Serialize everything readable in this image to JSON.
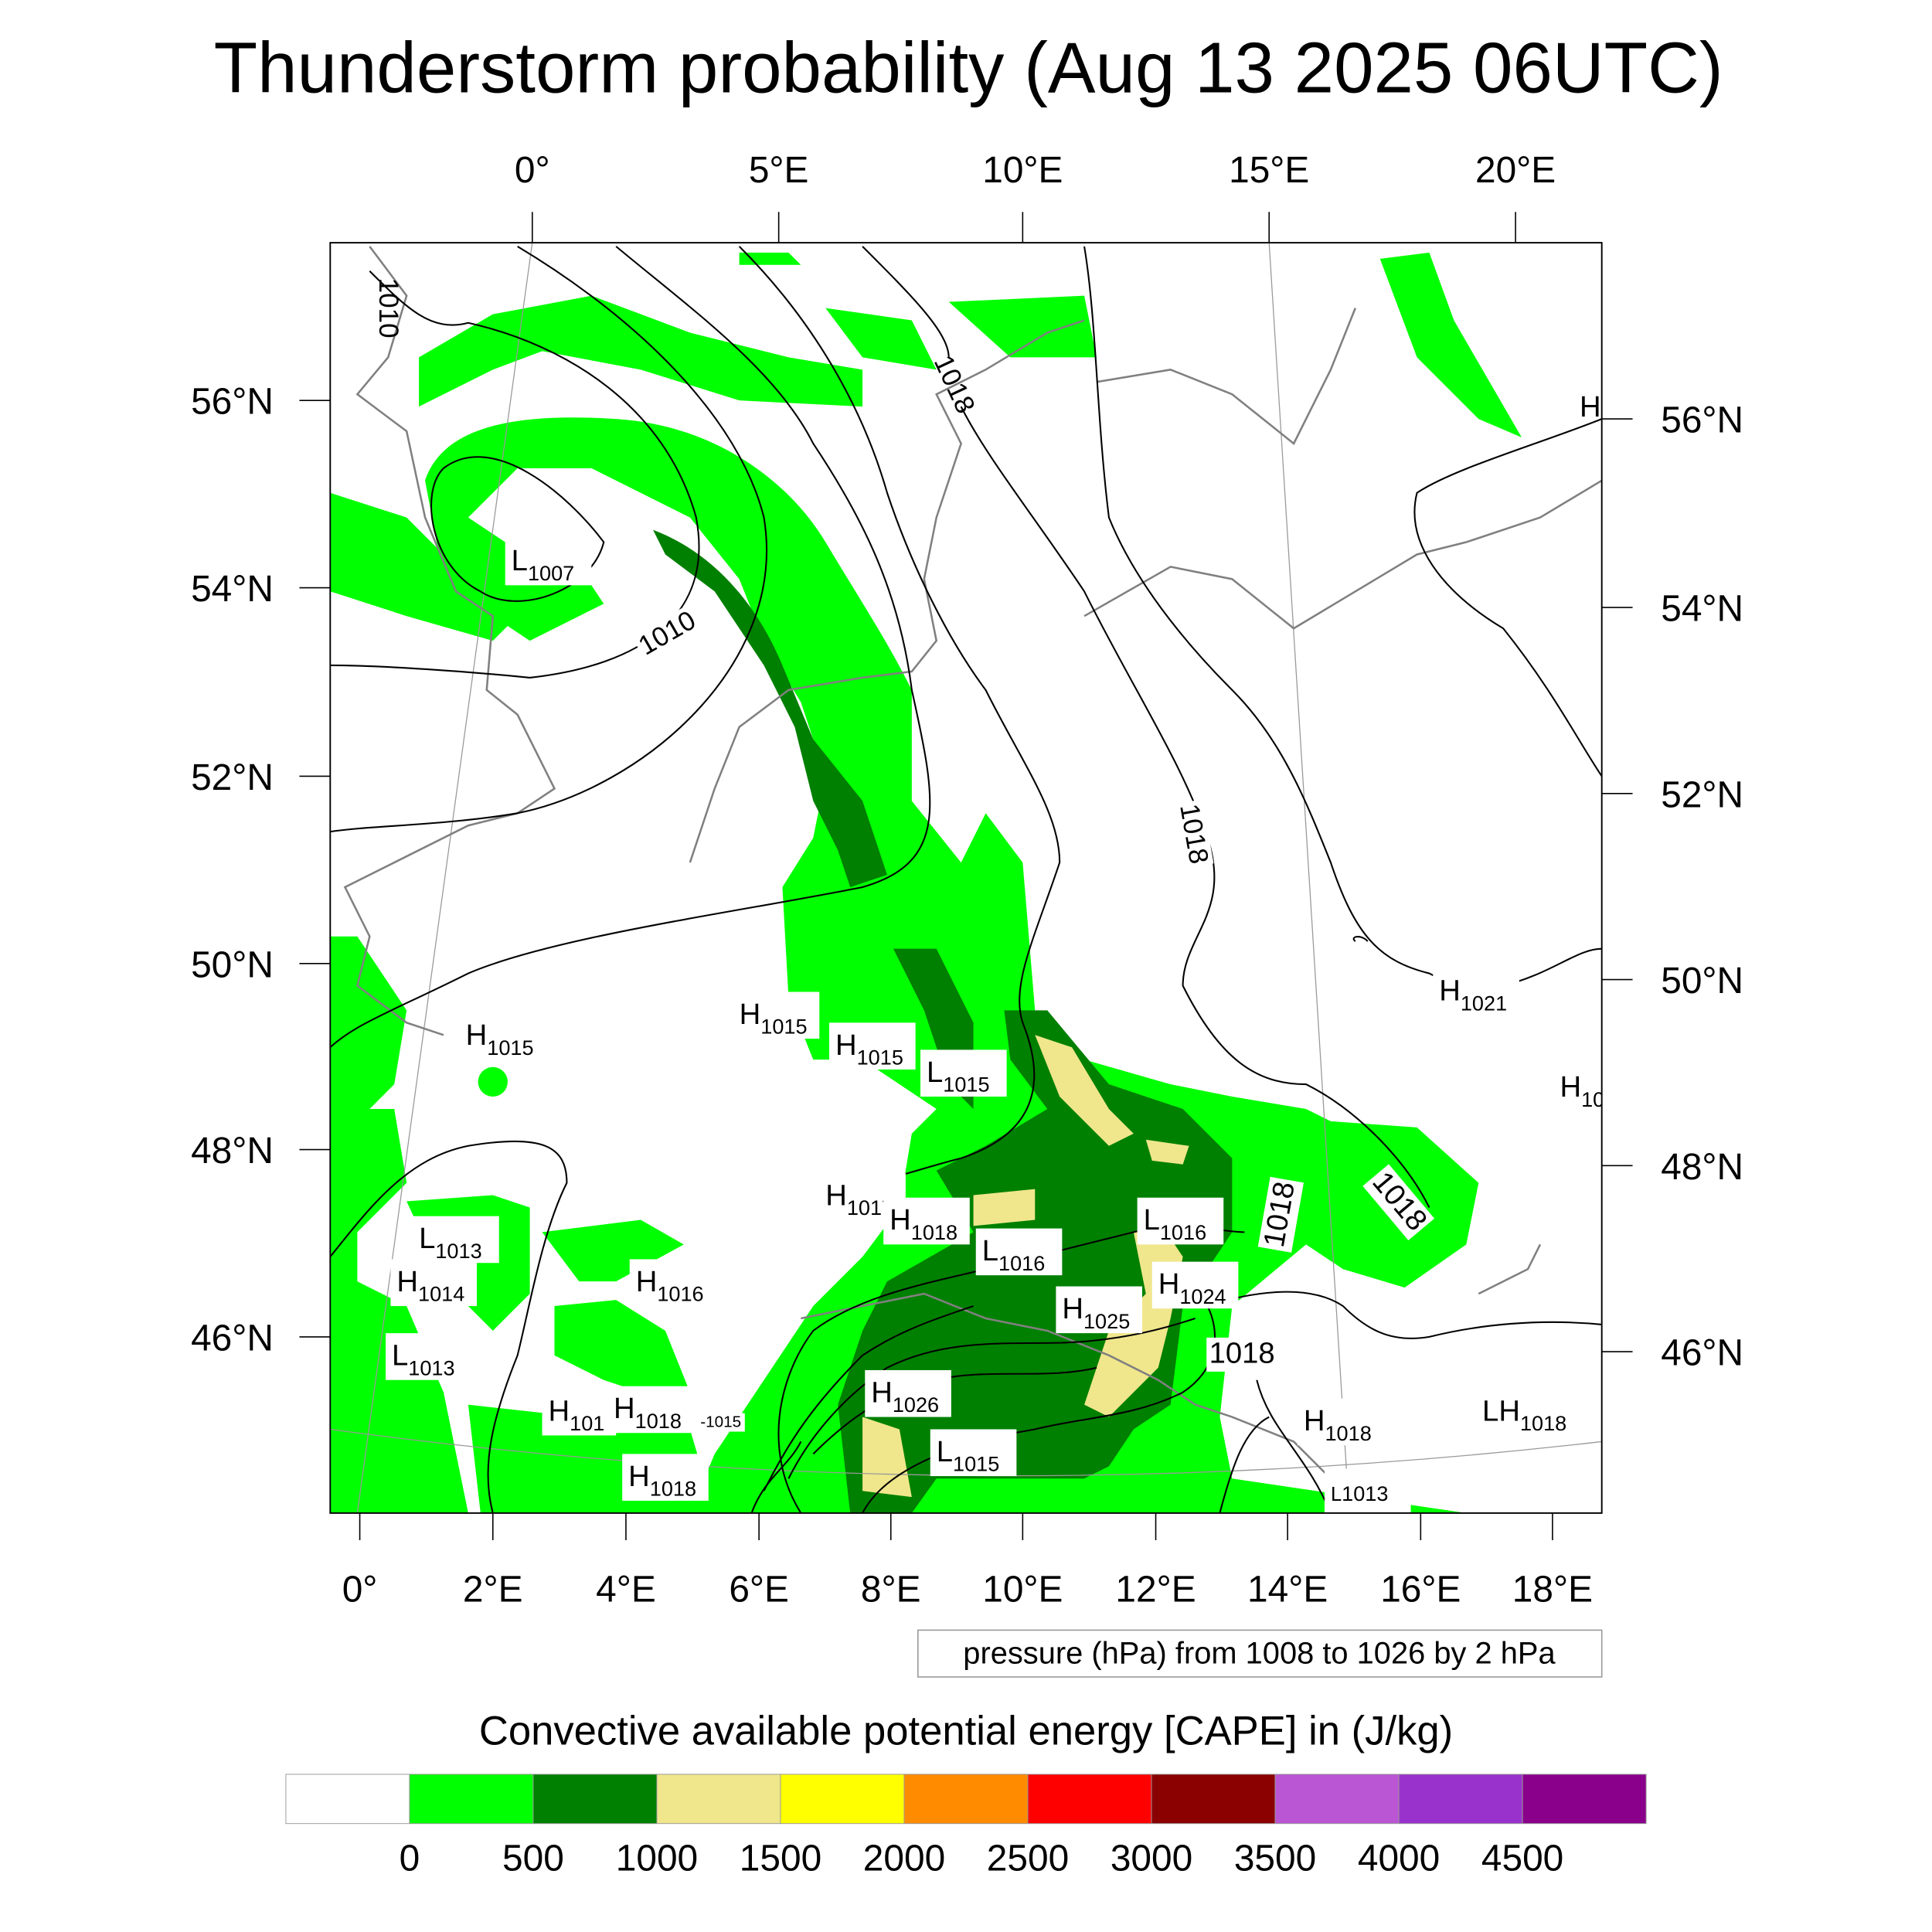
{
  "title": "Thunderstorm probability (Aug 13 2025 06UTC)",
  "top_lon_labels": [
    "0°",
    "5°E",
    "10°E",
    "15°E",
    "20°E"
  ],
  "bottom_lon_labels": [
    "0°",
    "2°E",
    "4°E",
    "6°E",
    "8°E",
    "10°E",
    "12°E",
    "14°E",
    "16°E",
    "18°E"
  ],
  "left_lat_labels": [
    "56°N",
    "54°N",
    "52°N",
    "50°N",
    "48°N",
    "46°N"
  ],
  "right_lat_labels": [
    "56°N",
    "54°N",
    "52°N",
    "50°N",
    "48°N",
    "46°N"
  ],
  "pressure_info": "pressure (hPa) from 1008 to 1026 by 2 hPa",
  "pressure_centers": [
    {
      "type": "L",
      "value": "1007"
    },
    {
      "type": "H",
      "value": "1015"
    },
    {
      "type": "H",
      "value": "1015"
    },
    {
      "type": "H",
      "value": "1015"
    },
    {
      "type": "L",
      "value": "1015"
    },
    {
      "type": "H",
      "value": "1021"
    },
    {
      "type": "H",
      "value": "10"
    },
    {
      "type": "H",
      "value": "1017"
    },
    {
      "type": "H",
      "value": "1018"
    },
    {
      "type": "L",
      "value": "1016"
    },
    {
      "type": "L",
      "value": "1016"
    },
    {
      "type": "L",
      "value": "1013"
    },
    {
      "type": "H",
      "value": "1014"
    },
    {
      "type": "H",
      "value": "1016"
    },
    {
      "type": "H",
      "value": "1024"
    },
    {
      "type": "H",
      "value": "1025"
    },
    {
      "type": "L",
      "value": "1013"
    },
    {
      "type": "H",
      "value": "1026"
    },
    {
      "type": "H",
      "value": "101"
    },
    {
      "type": "H",
      "value": "1018"
    },
    {
      "type": "H",
      "value": "1018"
    },
    {
      "type": "LH",
      "value": "1018"
    },
    {
      "type": "L",
      "value": "1015"
    },
    {
      "type": "H",
      "value": "1018"
    },
    {
      "type": "L",
      "value": "1013"
    },
    {
      "type": "H",
      "value": ""
    }
  ],
  "contour_labels": [
    "1010",
    "1010",
    "1018",
    "1018",
    "1018",
    "1018",
    "1018",
    "-1015"
  ],
  "colorbar": {
    "title": "Convective available potential energy [CAPE] in (J/kg)",
    "colors": [
      "#ffffff",
      "#00ff00",
      "#008000",
      "#f0e68c",
      "#ffff00",
      "#ff8c00",
      "#ff0000",
      "#8b0000",
      "#ba55d3",
      "#9932cc",
      "#8b008b"
    ],
    "labels": [
      "0",
      "500",
      "1000",
      "1500",
      "2000",
      "2500",
      "3000",
      "3500",
      "4000",
      "4500"
    ]
  }
}
